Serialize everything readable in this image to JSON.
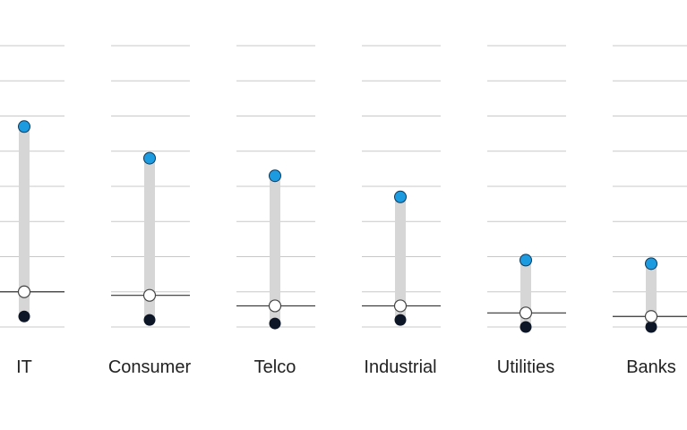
{
  "chart_data": {
    "type": "dot-range",
    "categories": [
      "IT",
      "Consumer",
      "Telco",
      "Industrial",
      "Utilities",
      "Banks"
    ],
    "series": [
      {
        "values": [
          4.7,
          3.8,
          3.3,
          2.7,
          0.9,
          0.8
        ]
      },
      {
        "values": [
          0.0,
          -0.1,
          -0.4,
          -0.4,
          -0.6,
          -0.7
        ]
      },
      {
        "values": [
          -0.7,
          -0.8,
          -0.9,
          -0.8,
          -1.0,
          -1.0
        ]
      }
    ],
    "reference_lines": [
      0.0,
      -0.1,
      -0.4,
      -0.4,
      -0.6,
      -0.7
    ],
    "ylim": [
      -1.0,
      7.0
    ],
    "grid": true,
    "legend": "none",
    "colors": {
      "high": "#1d9be0",
      "low": "#0c1626",
      "range_bar": "#d6d6d6",
      "grid": "#c8c8c8",
      "reference": "#333333"
    }
  }
}
